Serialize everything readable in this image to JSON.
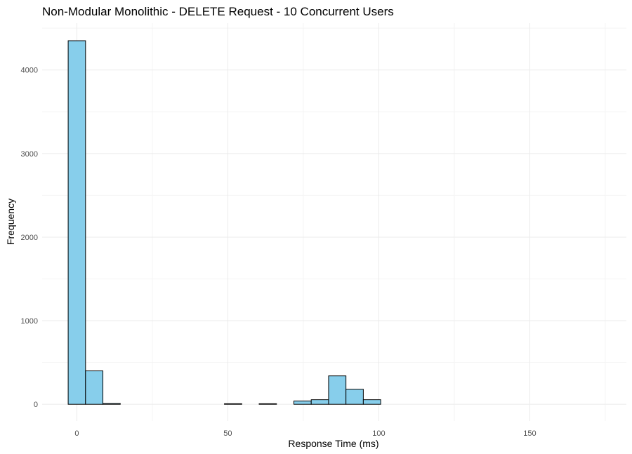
{
  "chart_data": {
    "type": "bar",
    "title": "Non-Modular Monolithic - DELETE Request - 10 Concurrent Users",
    "xlabel": "Response Time (ms)",
    "ylabel": "Frequency",
    "xlim": [
      -11.5,
      182
    ],
    "ylim": [
      -200,
      4560
    ],
    "x_ticks": [
      0,
      50,
      100,
      150
    ],
    "y_ticks": [
      0,
      1000,
      2000,
      3000,
      4000
    ],
    "x_tick_labels": [
      "0",
      "50",
      "100",
      "150"
    ],
    "y_tick_labels": [
      "0",
      "1000",
      "2000",
      "3000",
      "4000"
    ],
    "grid": true,
    "bin_width": 5.75,
    "bin_start": -2.875,
    "bins": [
      {
        "start": -2.875,
        "end": 2.875,
        "count": 4350
      },
      {
        "start": 2.875,
        "end": 8.625,
        "count": 400
      },
      {
        "start": 8.625,
        "end": 14.375,
        "count": 10
      },
      {
        "start": 14.375,
        "end": 20.125,
        "count": 0
      },
      {
        "start": 20.125,
        "end": 25.875,
        "count": 0
      },
      {
        "start": 25.875,
        "end": 31.625,
        "count": 0
      },
      {
        "start": 31.625,
        "end": 37.375,
        "count": 0
      },
      {
        "start": 37.375,
        "end": 43.125,
        "count": 0
      },
      {
        "start": 43.125,
        "end": 48.875,
        "count": 0
      },
      {
        "start": 48.875,
        "end": 54.625,
        "count": 7
      },
      {
        "start": 54.625,
        "end": 60.375,
        "count": 0
      },
      {
        "start": 60.375,
        "end": 66.125,
        "count": 7
      },
      {
        "start": 66.125,
        "end": 71.875,
        "count": 0
      },
      {
        "start": 71.875,
        "end": 77.625,
        "count": 40
      },
      {
        "start": 77.625,
        "end": 83.375,
        "count": 55
      },
      {
        "start": 83.375,
        "end": 89.125,
        "count": 340
      },
      {
        "start": 89.125,
        "end": 94.875,
        "count": 180
      },
      {
        "start": 94.875,
        "end": 100.625,
        "count": 55
      },
      {
        "start": 100.625,
        "end": 106.375,
        "count": 0
      },
      {
        "start": 106.375,
        "end": 112.125,
        "count": 0
      },
      {
        "start": 112.125,
        "end": 117.875,
        "count": 0
      },
      {
        "start": 117.875,
        "end": 123.625,
        "count": 0
      },
      {
        "start": 123.625,
        "end": 129.375,
        "count": 0
      },
      {
        "start": 129.375,
        "end": 135.125,
        "count": 0
      },
      {
        "start": 135.125,
        "end": 140.875,
        "count": 0
      },
      {
        "start": 140.875,
        "end": 146.625,
        "count": 0
      },
      {
        "start": 146.625,
        "end": 152.375,
        "count": 0
      },
      {
        "start": 152.375,
        "end": 158.125,
        "count": 0
      },
      {
        "start": 158.125,
        "end": 163.875,
        "count": 0
      },
      {
        "start": 163.875,
        "end": 169.625,
        "count": 0
      },
      {
        "start": 169.625,
        "end": 175.375,
        "count": 0
      }
    ],
    "colors": {
      "bar_fill": "#87ceeb",
      "bar_stroke": "#000000",
      "grid_major": "#ebebeb",
      "grid_minor": "#f4f4f4",
      "tick_text": "#4d4d4d"
    }
  }
}
